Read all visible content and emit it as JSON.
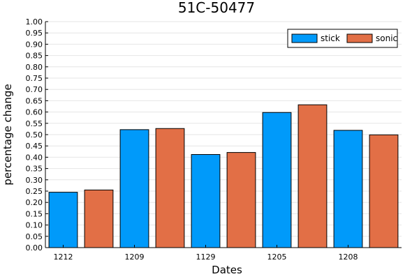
{
  "chart_data": {
    "type": "bar",
    "title": "51C-50477",
    "xlabel": "Dates",
    "ylabel": "percentage change",
    "ylim": [
      0,
      1.0
    ],
    "yticks": [
      "0.00",
      "0.05",
      "0.10",
      "0.15",
      "0.20",
      "0.25",
      "0.30",
      "0.35",
      "0.40",
      "0.45",
      "0.50",
      "0.55",
      "0.60",
      "0.65",
      "0.70",
      "0.75",
      "0.80",
      "0.85",
      "0.90",
      "0.95",
      "1.00"
    ],
    "grid": true,
    "legend_position": "top-right",
    "x_tick_labels": [
      "1212",
      "1209",
      "1129",
      "1205",
      "1208"
    ],
    "categories": [
      "1212",
      "1212",
      "1209",
      "1209",
      "1129",
      "1129",
      "1205",
      "1205",
      "1208",
      "1208"
    ],
    "bars": [
      {
        "series": "stick",
        "value": 0.245
      },
      {
        "series": "sonic",
        "value": 0.255
      },
      {
        "series": "stick",
        "value": 0.522
      },
      {
        "series": "sonic",
        "value": 0.527
      },
      {
        "series": "stick",
        "value": 0.412
      },
      {
        "series": "sonic",
        "value": 0.421
      },
      {
        "series": "stick",
        "value": 0.598
      },
      {
        "series": "sonic",
        "value": 0.632
      },
      {
        "series": "stick",
        "value": 0.519
      },
      {
        "series": "sonic",
        "value": 0.499
      }
    ],
    "series": [
      {
        "name": "stick",
        "color": "#009AFA"
      },
      {
        "name": "sonic",
        "color": "#E26F46"
      }
    ]
  }
}
